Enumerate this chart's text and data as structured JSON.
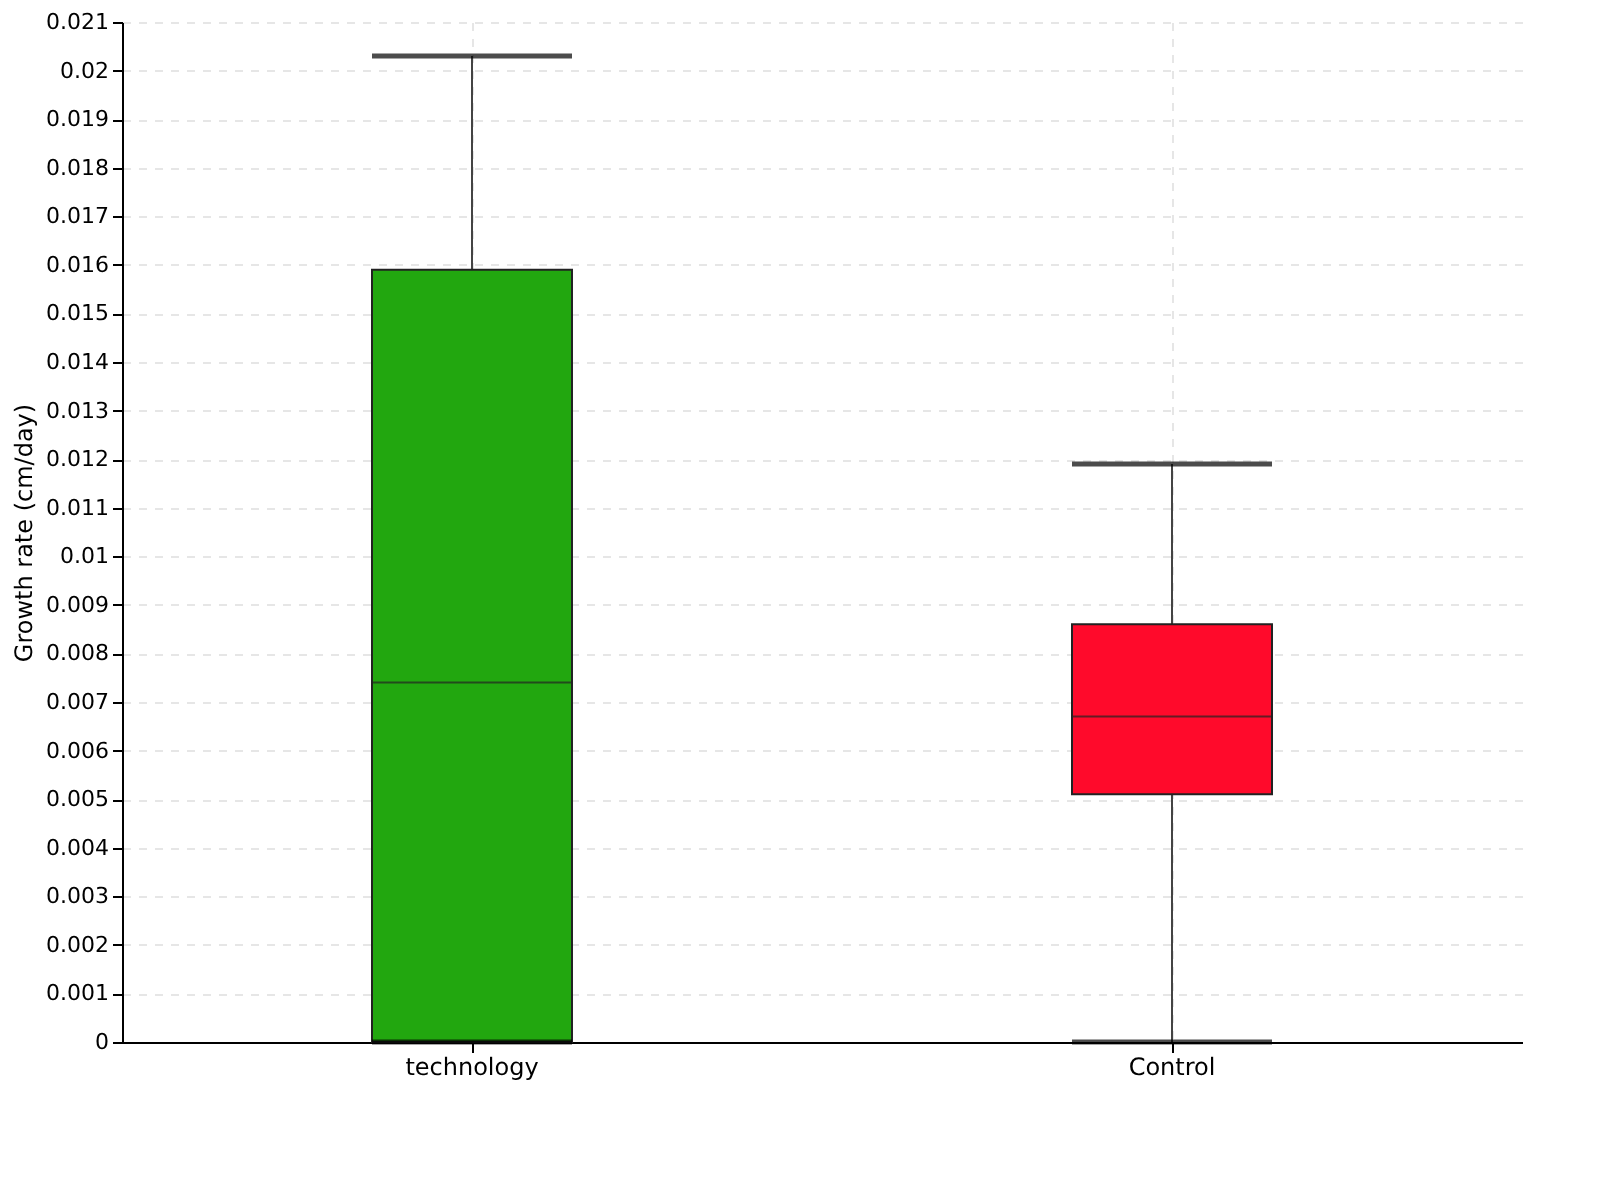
{
  "chart_data": {
    "type": "box",
    "ylabel": "Growth rate (cm/day)",
    "categories": [
      "technology",
      "Control"
    ],
    "series": [
      {
        "colors": [
          "#22a70f",
          "#ff0a2b"
        ],
        "boxes": [
          {
            "low": 0,
            "q1": 0,
            "median": 0.0074,
            "q3": 0.0159,
            "high": 0.0203
          },
          {
            "low": 0,
            "q1": 0.0051,
            "median": 0.0067,
            "q3": 0.0086,
            "high": 0.0119
          }
        ]
      }
    ],
    "ylim": [
      0,
      0.021
    ],
    "yticks": [
      0,
      0.001,
      0.002,
      0.003,
      0.004,
      0.005,
      0.006,
      0.007,
      0.008,
      0.009,
      0.01,
      0.011,
      0.012,
      0.013,
      0.014,
      0.015,
      0.016,
      0.017,
      0.018,
      0.019,
      0.02,
      0.021
    ],
    "grid": true
  }
}
